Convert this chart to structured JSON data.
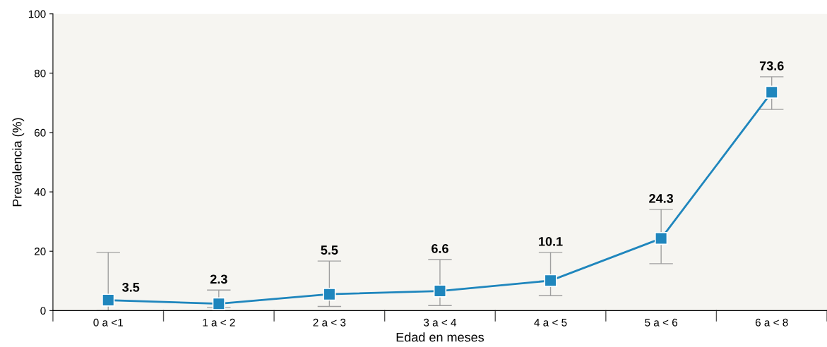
{
  "chart_data": {
    "type": "line",
    "xlabel": "Edad en meses",
    "ylabel": "Prevalencia (%)",
    "categories": [
      "0 a <1",
      "1 a < 2",
      "2 a < 3",
      "3 a < 4",
      "4 a < 5",
      "5 a < 6",
      "6 a < 8"
    ],
    "values": [
      3.5,
      2.3,
      5.5,
      6.6,
      10.1,
      24.3,
      73.6
    ],
    "errors": [
      [
        0,
        19.6
      ],
      [
        1,
        6.9
      ],
      [
        1.4,
        16.7
      ],
      [
        1.7,
        17.2
      ],
      [
        5,
        19.6
      ],
      [
        15.8,
        34.1
      ],
      [
        67.8,
        78.8
      ]
    ],
    "color": "#1f86bd",
    "marker": "square",
    "line_style": "solid",
    "data_labels": true,
    "grid": false,
    "ylim": [
      0,
      100
    ],
    "yticks": [
      0,
      20,
      40,
      60,
      80,
      100
    ]
  }
}
